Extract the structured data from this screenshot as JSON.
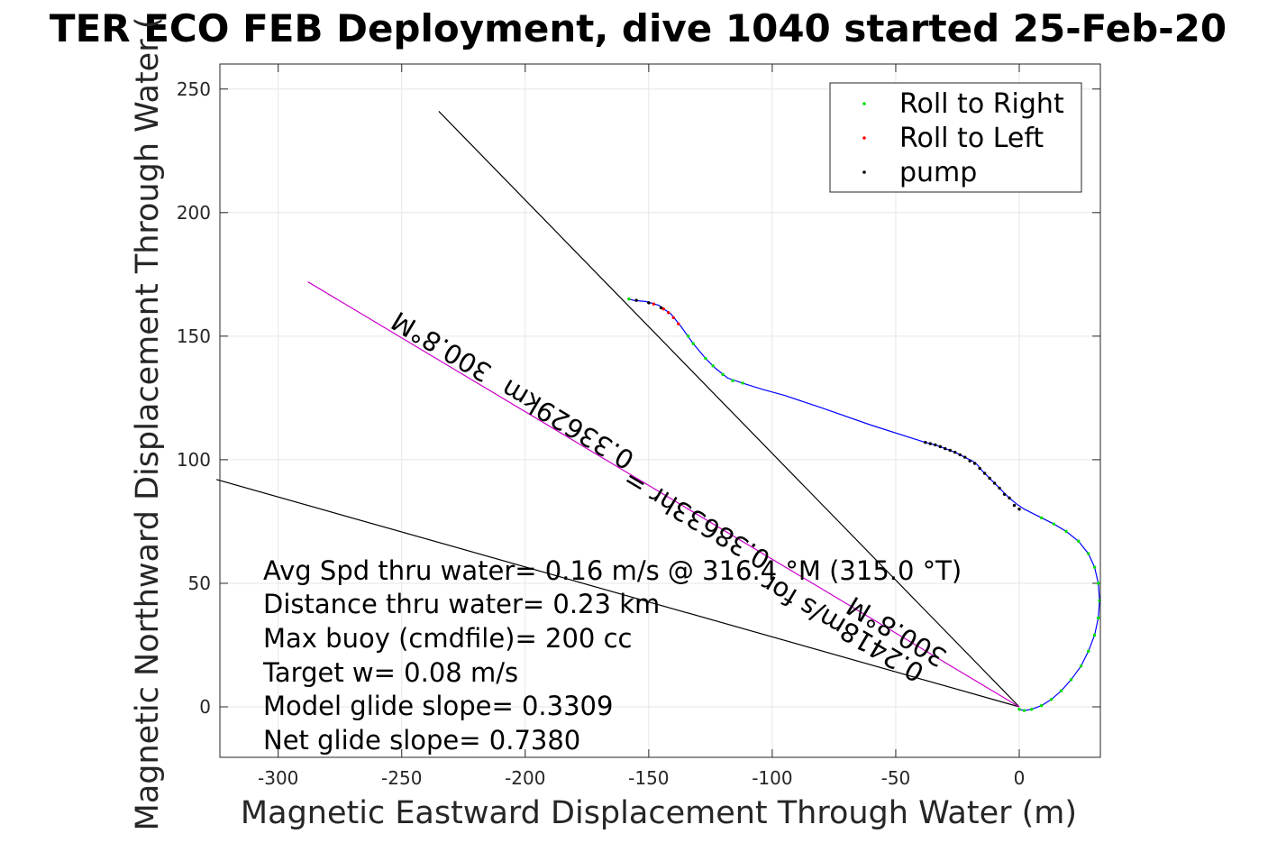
{
  "chart_data": {
    "type": "line",
    "title": "TER ECO FEB Deployment, dive 1040 started 25-Feb-20",
    "xlabel": "Magnetic Eastward Displacement Through Water (m)",
    "ylabel": "Magnetic Northward Displacement Through Water (",
    "xlim": [
      -325,
      33
    ],
    "ylim": [
      -20,
      260
    ],
    "xticks": [
      -300,
      -250,
      -200,
      -150,
      -100,
      -50,
      0
    ],
    "yticks": [
      0,
      50,
      100,
      150,
      200,
      250
    ],
    "grid": true,
    "legend": {
      "placement": "top-right",
      "entries": [
        {
          "label": "Roll to Right",
          "color": "#00e000"
        },
        {
          "label": "Roll to Left",
          "color": "#ff0000"
        },
        {
          "label": "pump",
          "color": "#000000"
        }
      ]
    },
    "track": {
      "color": "#0000ff",
      "points": [
        [
          0,
          -1
        ],
        [
          2,
          -1.5
        ],
        [
          5,
          -1
        ],
        [
          9,
          0.5
        ],
        [
          13,
          3
        ],
        [
          17,
          6.5
        ],
        [
          21,
          11
        ],
        [
          25,
          16.5
        ],
        [
          28,
          22.5
        ],
        [
          30.5,
          29
        ],
        [
          32,
          36
        ],
        [
          32.5,
          43
        ],
        [
          32,
          50
        ],
        [
          30.5,
          56.5
        ],
        [
          28,
          62
        ],
        [
          24,
          67
        ],
        [
          19,
          71
        ],
        [
          14,
          74
        ],
        [
          9,
          76.5
        ],
        [
          5,
          78.5
        ],
        [
          2,
          80
        ],
        [
          -1,
          82
        ],
        [
          -4,
          84.5
        ],
        [
          -7,
          87.5
        ],
        [
          -10,
          90.5
        ],
        [
          -13,
          93.5
        ],
        [
          -15,
          95.5
        ],
        [
          -17,
          98
        ],
        [
          -19,
          99.5
        ],
        [
          -22,
          101
        ],
        [
          -26,
          103
        ],
        [
          -30,
          104.5
        ],
        [
          -34,
          106
        ],
        [
          -38,
          107
        ],
        [
          -60,
          114
        ],
        [
          -80,
          121
        ],
        [
          -95,
          126
        ],
        [
          -104,
          128.5
        ],
        [
          -112,
          131
        ],
        [
          -118,
          133
        ],
        [
          -123,
          137
        ],
        [
          -127,
          141
        ],
        [
          -132,
          147
        ],
        [
          -137,
          154
        ],
        [
          -141,
          159
        ],
        [
          -146,
          162.5
        ],
        [
          -151,
          164
        ],
        [
          -156,
          164.5
        ],
        [
          -158,
          165
        ]
      ]
    },
    "markers": {
      "roll_right": [
        [
          0,
          -1
        ],
        [
          2,
          -1.5
        ],
        [
          5,
          -1
        ],
        [
          9,
          0.5
        ],
        [
          13,
          3
        ],
        [
          17,
          6.5
        ],
        [
          21,
          11
        ],
        [
          25,
          16.5
        ],
        [
          28,
          22.5
        ],
        [
          30.5,
          29
        ],
        [
          32,
          36
        ],
        [
          32.5,
          43
        ],
        [
          32,
          50
        ],
        [
          30.5,
          56.5
        ],
        [
          28,
          62
        ],
        [
          24,
          67
        ],
        [
          19,
          71
        ],
        [
          14,
          74
        ],
        [
          9,
          76.5
        ],
        [
          -112,
          131
        ],
        [
          -116,
          132
        ],
        [
          -120,
          134.5
        ],
        [
          -124,
          138
        ],
        [
          -127,
          141
        ],
        [
          -132,
          147
        ],
        [
          -134,
          150
        ],
        [
          -158,
          165
        ]
      ],
      "roll_left": [
        [
          -138,
          155
        ],
        [
          -140,
          157.5
        ],
        [
          -142,
          159.5
        ],
        [
          -144,
          161
        ],
        [
          -148,
          163
        ]
      ],
      "pump": [
        [
          0,
          80
        ],
        [
          -2,
          81.5
        ],
        [
          -4,
          84.5
        ],
        [
          -6,
          86
        ],
        [
          -8,
          88.5
        ],
        [
          -10,
          90.5
        ],
        [
          -12,
          92.5
        ],
        [
          -14,
          94.5
        ],
        [
          -16,
          96.5
        ],
        [
          -18,
          98.5
        ],
        [
          -20,
          99.5
        ],
        [
          -22,
          101
        ],
        [
          -24,
          102
        ],
        [
          -26,
          103
        ],
        [
          -28,
          103.8
        ],
        [
          -30,
          104.5
        ],
        [
          -32,
          105.3
        ],
        [
          -34,
          106
        ],
        [
          -36,
          106.5
        ],
        [
          -38,
          107
        ],
        [
          -145,
          161.5
        ],
        [
          -150,
          163.5
        ],
        [
          -155,
          164.5
        ]
      ]
    },
    "reference_lines": [
      {
        "from": [
          0,
          0
        ],
        "to": [
          -235,
          241
        ],
        "color": "#000000"
      },
      {
        "from": [
          0,
          0
        ],
        "to": [
          -325,
          92
        ],
        "color": "#000000"
      },
      {
        "from": [
          0,
          0
        ],
        "to": [
          -288,
          172
        ],
        "color": "#cc00cc"
      }
    ],
    "vector_labels": {
      "upper_line": "300.8°M",
      "upper_line_2": "0.33629km",
      "upper_line_3": "0.38633hr =",
      "lower_line": "300.8°M",
      "lower_line_2": "0.2418m/s for"
    },
    "annotations": [
      "Avg Spd thru water=  0.16 m/s @ 316.4 °M (315.0 °T)",
      "Distance thru water=  0.23 km",
      "Max buoy (cmdfile)= 200 cc",
      "Target w= 0.08 m/s",
      "Model glide slope= 0.3309",
      "Net glide slope= 0.7380"
    ]
  }
}
